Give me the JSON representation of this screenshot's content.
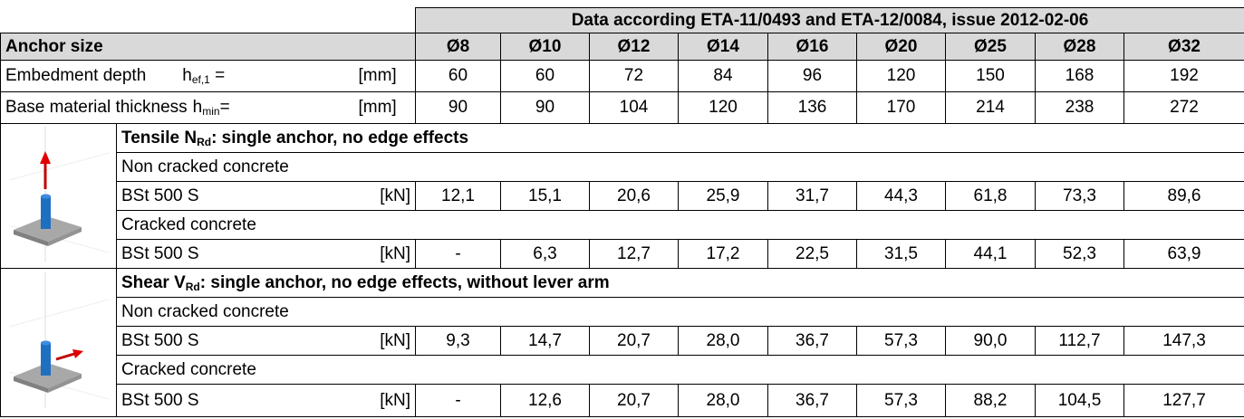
{
  "header": {
    "source": "Data according ETA-11/0493 and ETA-12/0084, issue 2012-02-06",
    "anchor_size_label": "Anchor size",
    "sizes": [
      "Ø8",
      "Ø10",
      "Ø12",
      "Ø14",
      "Ø16",
      "Ø20",
      "Ø25",
      "Ø28",
      "Ø32"
    ]
  },
  "rows": [
    {
      "label": "Embedment depth",
      "symbol": "h",
      "subscript": "ef,1",
      "operator": " =",
      "unit": "[mm]",
      "values": [
        "60",
        "60",
        "72",
        "84",
        "96",
        "120",
        "150",
        "168",
        "192"
      ]
    },
    {
      "label": "Base material thickness",
      "symbol": "h",
      "subscript": "min",
      "operator": "=",
      "unit": "[mm]",
      "values": [
        "90",
        "90",
        "104",
        "120",
        "136",
        "170",
        "214",
        "238",
        "272"
      ]
    }
  ],
  "sections": [
    {
      "title_prefix": "Tensile N",
      "title_subscript": "Rd",
      "title_suffix": ": single anchor, no edge effects",
      "arrow": "up",
      "groups": [
        {
          "condition": "Non cracked concrete",
          "material": "BSt 500 S",
          "unit": "[kN]",
          "values": [
            "12,1",
            "15,1",
            "20,6",
            "25,9",
            "31,7",
            "44,3",
            "61,8",
            "73,3",
            "89,6"
          ]
        },
        {
          "condition": "Cracked concrete",
          "material": "BSt 500 S",
          "unit": "[kN]",
          "values": [
            "-",
            "6,3",
            "12,7",
            "17,2",
            "22,5",
            "31,5",
            "44,1",
            "52,3",
            "63,9"
          ]
        }
      ]
    },
    {
      "title_prefix": "Shear V",
      "title_subscript": "Rd",
      "title_suffix": ": single anchor, no edge effects, without lever arm",
      "arrow": "side",
      "groups": [
        {
          "condition": "Non cracked concrete",
          "material": "BSt 500 S",
          "unit": "[kN]",
          "values": [
            "9,3",
            "14,7",
            "20,7",
            "28,0",
            "36,7",
            "57,3",
            "90,0",
            "112,7",
            "147,3"
          ]
        },
        {
          "condition": "Cracked concrete",
          "material": "BSt 500 S",
          "unit": "[kN]",
          "values": [
            "-",
            "12,6",
            "20,7",
            "28,0",
            "36,7",
            "57,3",
            "88,2",
            "104,5",
            "127,7"
          ]
        }
      ]
    }
  ]
}
